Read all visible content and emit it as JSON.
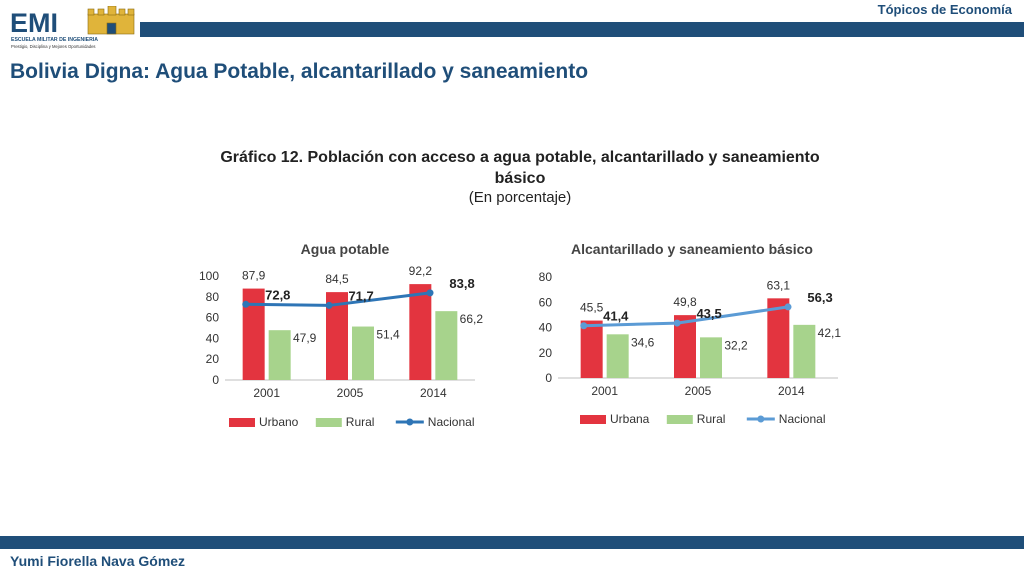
{
  "header": {
    "topic": "Tópicos de Economía"
  },
  "logo": {
    "text": "EMI",
    "line1": "ESCUELA MILITAR DE INGENIERIA",
    "line2": "Prestigio, Disciplina y Mejores Oportunidades"
  },
  "slide": {
    "title": "Bolivia Digna: Agua Potable, alcantarillado y saneamiento"
  },
  "figure": {
    "title": "Gráfico 12. Población con acceso a agua potable, alcantarillado y saneamiento básico",
    "subtitle": "(En porcentaje)"
  },
  "footer": {
    "author": "Yumi Fiorella Nava Gómez"
  },
  "colors": {
    "brand": "#1f4e79",
    "urbano": "#e3343f",
    "rural": "#a7d38c",
    "nacional": "#2e75b6",
    "nacional_right": "#5b9bd5"
  },
  "chart_data": [
    {
      "type": "bar",
      "title": "Agua potable",
      "categories": [
        "2001",
        "2005",
        "2014"
      ],
      "ylim": [
        0,
        100
      ],
      "yticks": [
        "0",
        "20",
        "40",
        "60",
        "80",
        "100"
      ],
      "series": [
        {
          "name": "Urbano",
          "kind": "bar",
          "values": [
            87.9,
            84.5,
            92.2
          ],
          "labels": [
            "87,9",
            "84,5",
            "92,2"
          ]
        },
        {
          "name": "Rural",
          "kind": "bar",
          "values": [
            47.9,
            51.4,
            66.2
          ],
          "labels": [
            "47,9",
            "51,4",
            "66,2"
          ]
        },
        {
          "name": "Nacional",
          "kind": "line",
          "values": [
            72.8,
            71.7,
            83.8
          ],
          "labels": [
            "72,8",
            "71,7",
            "83,8"
          ]
        }
      ],
      "legend": "bottom"
    },
    {
      "type": "bar",
      "title": "Alcantarillado y saneamiento básico",
      "categories": [
        "2001",
        "2005",
        "2014"
      ],
      "ylim": [
        0,
        80
      ],
      "yticks": [
        "0",
        "20",
        "40",
        "60",
        "80"
      ],
      "series": [
        {
          "name": "Urbana",
          "kind": "bar",
          "values": [
            45.5,
            49.8,
            63.1
          ],
          "labels": [
            "45,5",
            "49,8",
            "63,1"
          ]
        },
        {
          "name": "Rural",
          "kind": "bar",
          "values": [
            34.6,
            32.2,
            42.1
          ],
          "labels": [
            "34,6",
            "32,2",
            "42,1"
          ]
        },
        {
          "name": "Nacional",
          "kind": "line",
          "values": [
            41.4,
            43.5,
            56.3
          ],
          "labels": [
            "41,4",
            "43,5",
            "56,3"
          ]
        }
      ],
      "legend": "bottom"
    }
  ]
}
